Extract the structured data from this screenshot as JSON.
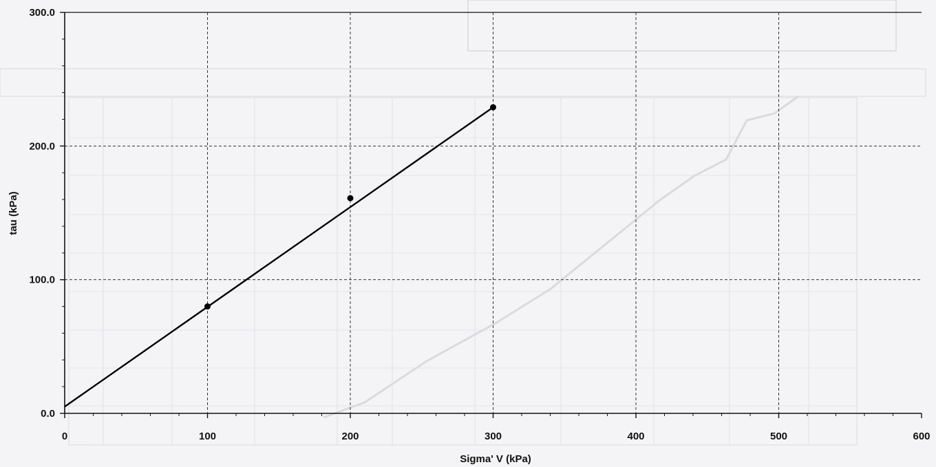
{
  "colors": {
    "background": "#f4f4f6",
    "axis": "#111111",
    "grid": "#333333",
    "series": "#000000",
    "bleed_through": "#c9c9cf"
  },
  "chart_data": {
    "type": "scatter",
    "title": "",
    "xlabel": "Sigma' V  (kPa)",
    "ylabel": "tau  (kPa)",
    "xlim": [
      0,
      600
    ],
    "ylim": [
      0,
      300
    ],
    "x_ticks": [
      0,
      100,
      200,
      300,
      400,
      500,
      600
    ],
    "x_tick_labels": [
      "0",
      "100",
      "200",
      "300",
      "400",
      "500",
      "600"
    ],
    "y_ticks": [
      0,
      100,
      200,
      300
    ],
    "y_tick_labels": [
      "0.0",
      "100.0",
      "200.0",
      "300.0"
    ],
    "grid": true,
    "grid_style": "dashed",
    "legend": "none",
    "series": [
      {
        "marker": "circle",
        "points": [
          {
            "x": 100,
            "y": 80
          },
          {
            "x": 200,
            "y": 161
          },
          {
            "x": 300,
            "y": 229
          }
        ]
      }
    ],
    "trendline": {
      "x": [
        0,
        300
      ],
      "y": [
        5,
        229
      ]
    }
  }
}
